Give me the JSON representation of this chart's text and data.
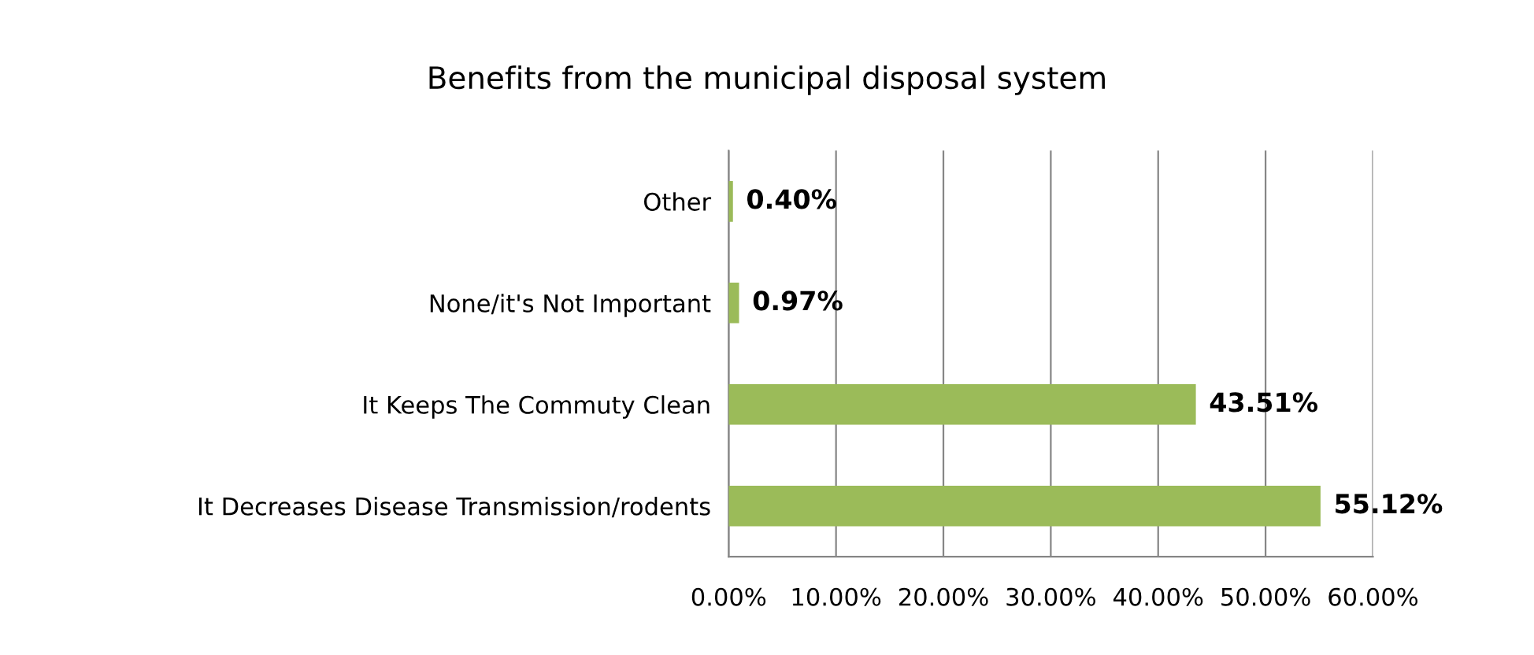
{
  "chart_data": {
    "type": "bar",
    "orientation": "horizontal",
    "title": "Benefits from the municipal disposal system",
    "categories": [
      "Other",
      "None/it's Not Important",
      "It Keeps The Commuty Clean",
      "It Decreases Disease Transmission/rodents"
    ],
    "values": [
      0.4,
      0.97,
      43.51,
      55.12
    ],
    "value_labels": [
      "0.40%",
      "0.97%",
      "43.51%",
      "55.12%"
    ],
    "color": "#9bbb59",
    "xlim": [
      0,
      60
    ],
    "xticks": [
      {
        "value": 0,
        "label": "0.00%"
      },
      {
        "value": 10,
        "label": "10.00%"
      },
      {
        "value": 20,
        "label": "20.00%"
      },
      {
        "value": 30,
        "label": "30.00%"
      },
      {
        "value": 40,
        "label": "40.00%"
      },
      {
        "value": 50,
        "label": "50.00%"
      },
      {
        "value": 60,
        "label": "60.00%"
      }
    ],
    "grid": "x",
    "legend": false
  }
}
